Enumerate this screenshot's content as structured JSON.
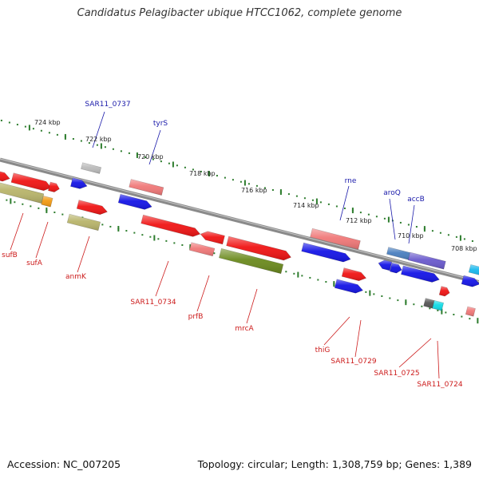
{
  "title": "Candidatus Pelagibacter ubique HTCC1062, complete genome",
  "footer": {
    "accession": "Accession: NC_007205",
    "summary": "Topology: circular; Length: 1,308,759 bp; Genes: 1,389"
  },
  "ruler": {
    "labels": [
      "724 kbp",
      "722 kbp",
      "720 kbp",
      "718 kbp",
      "716 kbp",
      "714 kbp",
      "712 kbp",
      "710 kbp",
      "708 kbp"
    ]
  },
  "colors": {
    "backbone": "#8a8a8a",
    "tick": "#2e7d2e",
    "label_top": "#1a1aaa",
    "label_bottom": "#cc1a1a"
  },
  "gene_labels": {
    "top": [
      "SAR11_0737",
      "tyrS",
      "rne",
      "aroQ",
      "accB"
    ],
    "bottom": [
      "sufB",
      "sufA",
      "anmK",
      "SAR11_0734",
      "prfB",
      "mrcA",
      "thiG",
      "SAR11_0729",
      "SAR11_0725",
      "SAR11_0724"
    ]
  }
}
